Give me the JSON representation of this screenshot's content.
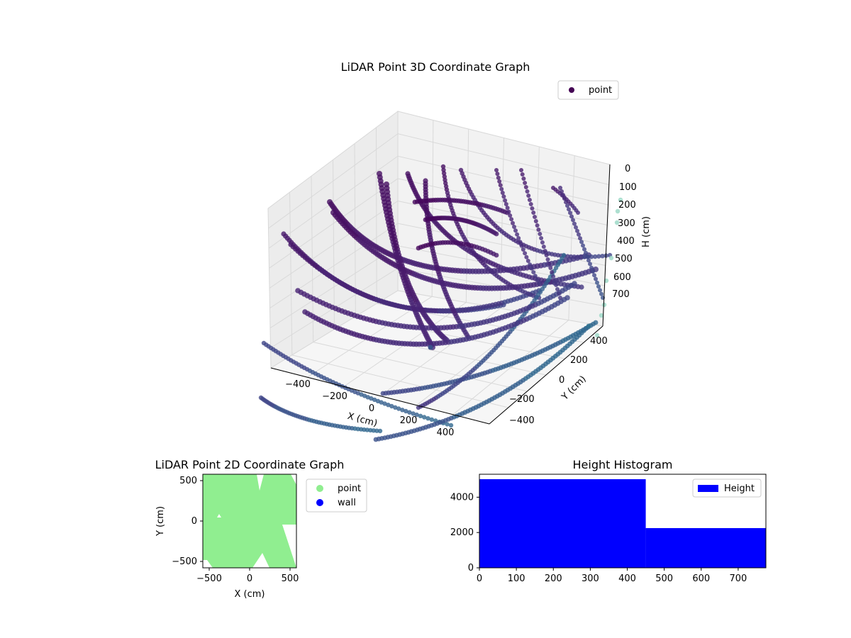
{
  "chart_data": [
    {
      "type": "scatter",
      "projection": "3d",
      "title": "LiDAR Point 3D Coordinate Graph",
      "xlabel": "X (cm)",
      "ylabel": "Y (cm)",
      "zlabel": "H (cm)",
      "xticks": [
        "−400",
        "−200",
        "0",
        "200",
        "400"
      ],
      "yticks": [
        "−400",
        "−200",
        "0",
        "200",
        "400"
      ],
      "zticks": [
        "0",
        "100",
        "200",
        "300",
        "400",
        "500",
        "600",
        "700"
      ],
      "xlim": [
        -560,
        560
      ],
      "ylim": [
        -560,
        560
      ],
      "zlim": [
        750,
        0
      ],
      "z_inverted": true,
      "grid": true,
      "legend": {
        "position": "top-right",
        "entries": [
          "point"
        ]
      },
      "marker_color": "#440154",
      "colormap": "viridis",
      "series": [
        {
          "name": "point"
        }
      ]
    },
    {
      "type": "scatter",
      "title": "LiDAR Point 2D Coordinate Graph",
      "xlabel": "X (cm)",
      "ylabel": "Y (cm)",
      "xticks": [
        "−500",
        "0",
        "500"
      ],
      "yticks": [
        "−500",
        "0",
        "500"
      ],
      "xlim": [
        -580,
        580
      ],
      "ylim": [
        -580,
        580
      ],
      "legend": {
        "position": "outside-right",
        "entries": [
          "point",
          "wall"
        ]
      },
      "series": [
        {
          "name": "point",
          "color": "#90ee90"
        },
        {
          "name": "wall",
          "color": "#0000ff"
        }
      ]
    },
    {
      "type": "bar",
      "subtype": "histogram",
      "title": "Height Histogram",
      "xticks": [
        "0",
        "100",
        "200",
        "300",
        "400",
        "500",
        "600",
        "700"
      ],
      "yticks": [
        "0",
        "2000",
        "4000"
      ],
      "xlim": [
        0,
        775
      ],
      "ylim": [
        0,
        5300
      ],
      "bins": [
        {
          "start": 0,
          "end": 450,
          "count": 5020
        },
        {
          "start": 450,
          "end": 775,
          "count": 2250
        }
      ],
      "color": "#0000ff",
      "legend": {
        "position": "top-right",
        "entries": [
          "Height"
        ]
      },
      "series": [
        {
          "name": "Height"
        }
      ]
    }
  ]
}
